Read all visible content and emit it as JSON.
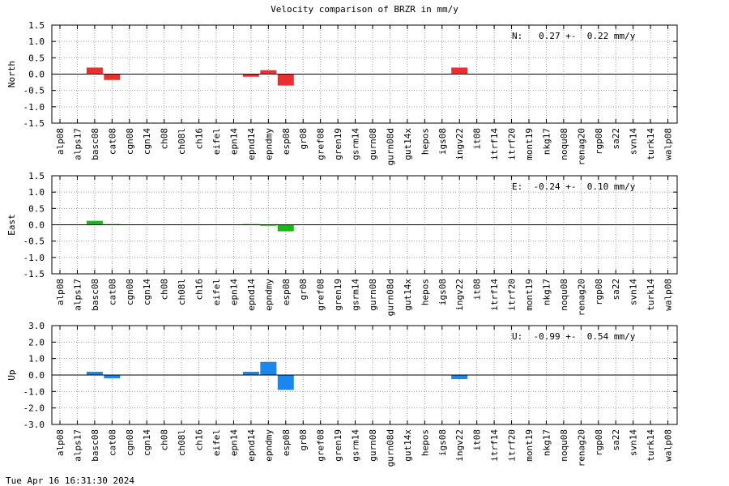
{
  "title": "Velocity comparison of BRZR in mm/y",
  "footer_timestamp": "Tue Apr 16 16:31:30 2024",
  "chart_data": [
    {
      "type": "bar",
      "name": "north",
      "ylabel": "North",
      "color": "#e83030",
      "stat_text": "N:   0.27 +-  0.22 mm/y",
      "ylim": [
        -1.5,
        1.5
      ],
      "yticks": [
        "1.5",
        "1.0",
        "0.5",
        "0.0",
        "-0.5",
        "-1.0",
        "-1.5"
      ],
      "categories": [
        "alp08",
        "alps17",
        "basc08",
        "cat08",
        "cgn08",
        "cgn14",
        "ch08",
        "ch08l",
        "ch16",
        "eifel",
        "epn14",
        "epnd14",
        "epndmy",
        "esp08",
        "gr08",
        "gref08",
        "gren19",
        "gsrm14",
        "gurn08",
        "gurn08d",
        "gut14x",
        "hepos",
        "igs08",
        "ingv22",
        "it08",
        "itrf14",
        "itrf20",
        "mont19",
        "nkg17",
        "noqu08",
        "renag20",
        "rgp08",
        "sa22",
        "svn14",
        "turk14",
        "walp08"
      ],
      "values": [
        null,
        null,
        0.2,
        -0.18,
        null,
        null,
        null,
        null,
        null,
        null,
        null,
        -0.08,
        0.12,
        -0.35,
        null,
        null,
        null,
        null,
        null,
        null,
        null,
        null,
        null,
        0.2,
        null,
        null,
        null,
        null,
        null,
        null,
        null,
        null,
        null,
        null,
        null,
        null
      ]
    },
    {
      "type": "bar",
      "name": "east",
      "ylabel": "East",
      "color": "#1ab81a",
      "stat_text": "E:  -0.24 +-  0.10 mm/y",
      "ylim": [
        -1.5,
        1.5
      ],
      "yticks": [
        "1.5",
        "1.0",
        "0.5",
        "0.0",
        "-0.5",
        "-1.0",
        "-1.5"
      ],
      "categories": [
        "alp08",
        "alps17",
        "basc08",
        "cat08",
        "cgn08",
        "cgn14",
        "ch08",
        "ch08l",
        "ch16",
        "eifel",
        "epn14",
        "epnd14",
        "epndmy",
        "esp08",
        "gr08",
        "gref08",
        "gren19",
        "gsrm14",
        "gurn08",
        "gurn08d",
        "gut14x",
        "hepos",
        "igs08",
        "ingv22",
        "it08",
        "itrf14",
        "itrf20",
        "mont19",
        "nkg17",
        "noqu08",
        "renag20",
        "rgp08",
        "sa22",
        "svn14",
        "turk14",
        "walp08"
      ],
      "values": [
        null,
        null,
        0.12,
        0.02,
        null,
        null,
        null,
        null,
        null,
        null,
        null,
        0.02,
        -0.03,
        -0.2,
        null,
        null,
        null,
        null,
        null,
        null,
        null,
        null,
        null,
        null,
        null,
        null,
        null,
        null,
        null,
        null,
        null,
        null,
        null,
        null,
        null,
        null
      ]
    },
    {
      "type": "bar",
      "name": "up",
      "ylabel": "Up",
      "color": "#1a86f0",
      "stat_text": "U:  -0.99 +-  0.54 mm/y",
      "ylim": [
        -3.0,
        3.0
      ],
      "yticks": [
        "3.0",
        "2.0",
        "1.0",
        "0.0",
        "-1.0",
        "-2.0",
        "-3.0"
      ],
      "categories": [
        "alp08",
        "alps17",
        "basc08",
        "cat08",
        "cgn08",
        "cgn14",
        "ch08",
        "ch08l",
        "ch16",
        "eifel",
        "epn14",
        "epnd14",
        "epndmy",
        "esp08",
        "gr08",
        "gref08",
        "gren19",
        "gsrm14",
        "gurn08",
        "gurn08d",
        "gut14x",
        "hepos",
        "igs08",
        "ingv22",
        "it08",
        "itrf14",
        "itrf20",
        "mont19",
        "nkg17",
        "noqu08",
        "renag20",
        "rgp08",
        "sa22",
        "svn14",
        "turk14",
        "walp08"
      ],
      "values": [
        null,
        null,
        0.2,
        -0.2,
        null,
        null,
        null,
        null,
        null,
        null,
        null,
        0.2,
        0.8,
        -0.9,
        null,
        null,
        null,
        null,
        null,
        null,
        null,
        null,
        null,
        -0.25,
        null,
        null,
        null,
        null,
        null,
        null,
        null,
        null,
        null,
        null,
        null,
        null
      ]
    }
  ]
}
